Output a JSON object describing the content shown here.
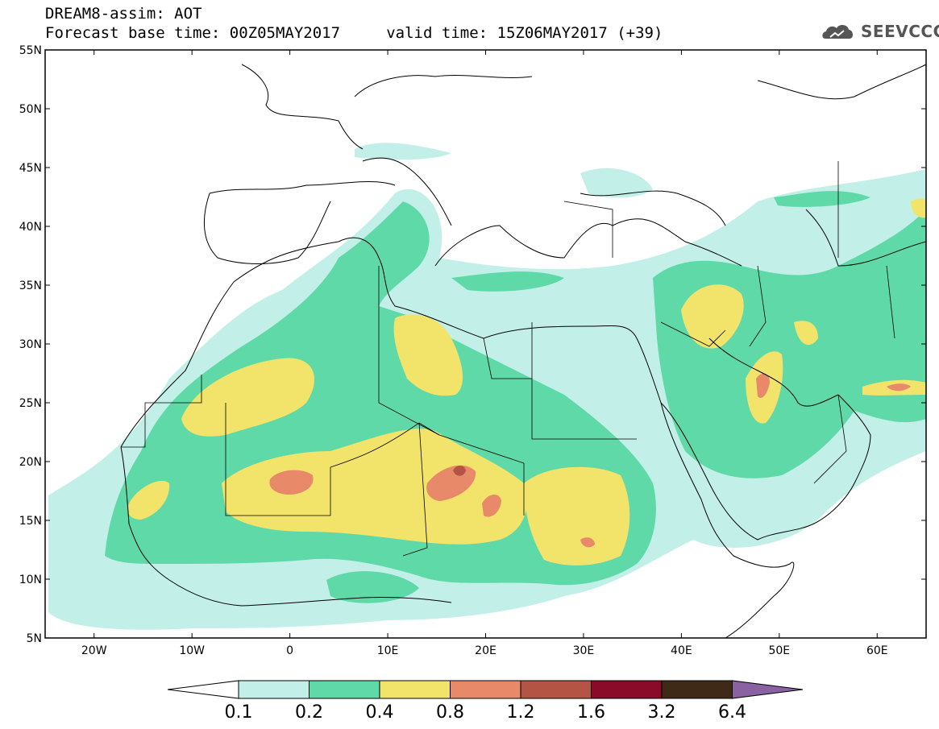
{
  "header": {
    "title": "DREAM8-assim: AOT",
    "subtitle": "Forecast base time: 00Z05MAY2017     valid time: 15Z06MAY2017 (+39)",
    "logo": "SEEVCCC"
  },
  "map": {
    "lon_range": [
      -25,
      65
    ],
    "lat_range": [
      5,
      55
    ],
    "lat_labels": [
      "55N",
      "50N",
      "45N",
      "40N",
      "35N",
      "30N",
      "25N",
      "20N",
      "15N",
      "10N",
      "5N"
    ],
    "lat_values": [
      55,
      50,
      45,
      40,
      35,
      30,
      25,
      20,
      15,
      10,
      5
    ],
    "lon_labels": [
      "20W",
      "10W",
      "0",
      "10E",
      "20E",
      "30E",
      "40E",
      "50E",
      "60E"
    ],
    "lon_values": [
      -20,
      -10,
      0,
      10,
      20,
      30,
      40,
      50,
      60
    ]
  },
  "colorbar": {
    "labels": [
      "0.1",
      "0.2",
      "0.4",
      "0.8",
      "1.2",
      "1.6",
      "3.2",
      "6.4"
    ],
    "colors": [
      "#ffffff",
      "#c2f0e8",
      "#5fd9a8",
      "#f2e36b",
      "#e8896a",
      "#b45445",
      "#8a0a2a",
      "#3f2a17",
      "#8a62a3"
    ]
  }
}
